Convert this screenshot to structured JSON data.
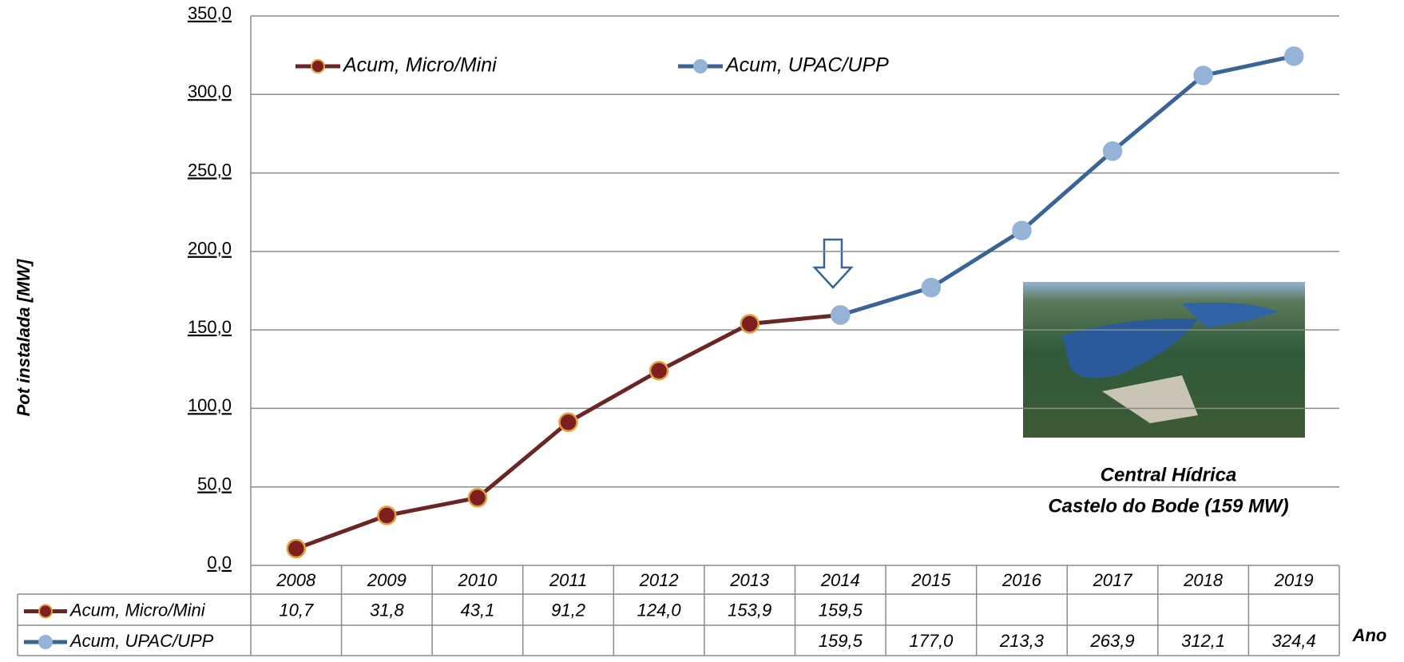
{
  "chart_data": {
    "type": "line",
    "y_label": "Pot instalada [MW]",
    "x_label": "Ano",
    "annotation": [
      "Central Hídrica",
      "Castelo do Bode (159 MW)"
    ],
    "categories": [
      "2008",
      "2009",
      "2010",
      "2011",
      "2012",
      "2013",
      "2014",
      "2015",
      "2016",
      "2017",
      "2018",
      "2019"
    ],
    "series": [
      {
        "name": "Acum, Micro/Mini",
        "color": "#6b2525",
        "marker_color": "#7d1f1f",
        "marker_edge": "#e0a040",
        "values": [
          10.7,
          31.8,
          43.1,
          91.2,
          124.0,
          153.9,
          159.5,
          null,
          null,
          null,
          null,
          null
        ],
        "value_labels": [
          "10,7",
          "31,8",
          "43,1",
          "91,2",
          "124,0",
          "153,9",
          "159,5",
          null,
          null,
          null,
          null,
          null
        ]
      },
      {
        "name": "Acum, UPAC/UPP",
        "color": "#3a6496",
        "marker_color": "#95b3d7",
        "marker_edge": "#95b3d7",
        "values": [
          null,
          null,
          null,
          null,
          null,
          null,
          159.5,
          177.0,
          213.3,
          263.9,
          312.1,
          324.4
        ],
        "value_labels": [
          null,
          null,
          null,
          null,
          null,
          null,
          "159,5",
          "177,0",
          "213,3",
          "263,9",
          "312,1",
          "324,4"
        ]
      }
    ],
    "ylim": [
      0,
      350
    ],
    "yticks": [
      {
        "value": 0,
        "label": "0,0"
      },
      {
        "value": 50,
        "label": "50,0"
      },
      {
        "value": 100,
        "label": "100,0"
      },
      {
        "value": 150,
        "label": "150,0"
      },
      {
        "value": 200,
        "label": "200,0"
      },
      {
        "value": 250,
        "label": "250,0"
      },
      {
        "value": 300,
        "label": "300,0"
      },
      {
        "value": 350,
        "label": "350,0"
      }
    ],
    "grid": true
  }
}
